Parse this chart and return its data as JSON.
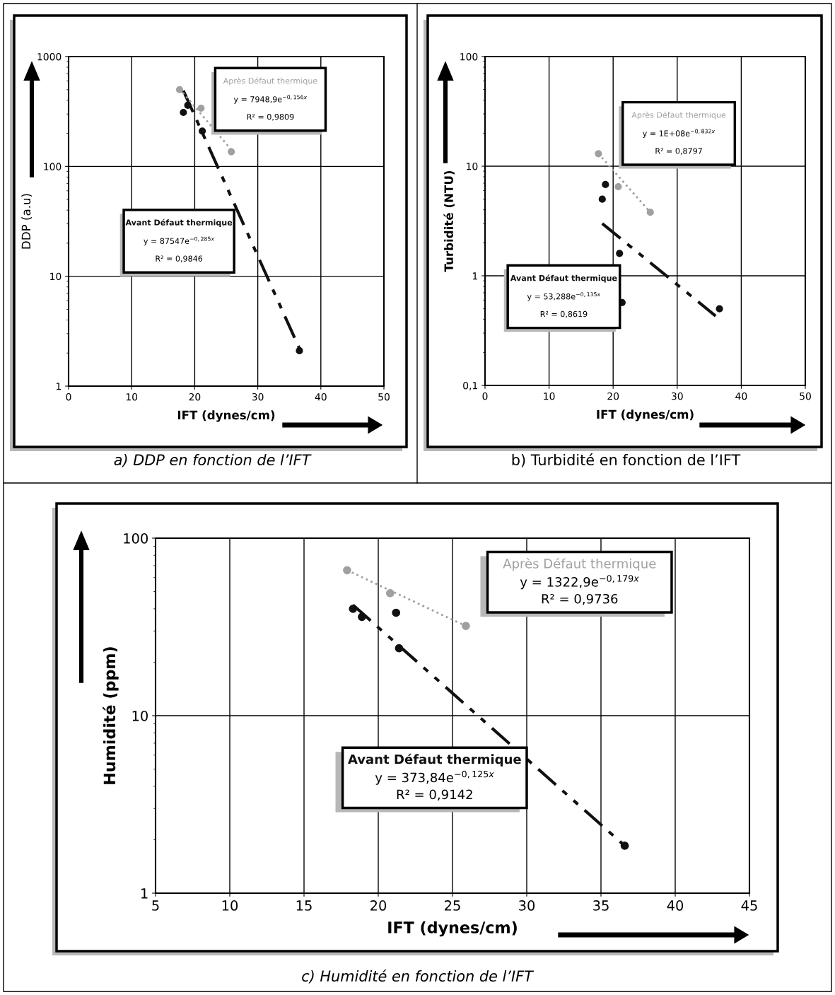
{
  "chart_data": [
    {
      "type": "scatter",
      "xlabel": "IFT (dynes/cm)",
      "ylabel": "DDP (a.u)",
      "log": "y",
      "grid": true,
      "marker": "circle",
      "xlim": [
        0,
        50
      ],
      "xticks": [
        0,
        10,
        20,
        30,
        40,
        50
      ],
      "ylim": [
        1,
        1000
      ],
      "yticks": [
        1,
        10,
        100,
        1000
      ],
      "series": [
        {
          "color": "#111111",
          "x": [
            18.2,
            18.9,
            21.2,
            36.6
          ],
          "values": [
            310,
            360,
            210,
            2.1
          ]
        },
        {
          "color": "#a0a0a0",
          "x": [
            17.6,
            21.0,
            25.8
          ],
          "values": [
            500,
            339,
            136
          ]
        },
        {
          "type": "line",
          "marker": "none",
          "color": "#111111",
          "line_style": "dashed",
          "x": [
            18.2,
            36.6
          ],
          "values": [
            490,
            2.2
          ]
        },
        {
          "type": "line",
          "marker": "none",
          "color": "#a0a0a0",
          "line_style": "dotted",
          "x": [
            17.6,
            25.8
          ],
          "values": [
            510,
            142
          ]
        }
      ],
      "annotations": [
        "Avant Défaut thermique\ny = 87547e$^{−0,285x}$\nR² = 0,9846",
        "Après Défaut thermique\ny = 7948,9e$^{−0,156x}$\nR² = 0,9809",
        "a) DDP en fonction de l’IFT"
      ]
    },
    {
      "type": "scatter",
      "xlabel": "IFT (dynes/cm)",
      "ylabel": "Turbidité (NTU)",
      "log": "y",
      "grid": true,
      "marker": "circle",
      "xlim": [
        0,
        50
      ],
      "xticks": [
        0,
        10,
        20,
        30,
        40,
        50
      ],
      "ylim": [
        0.1,
        100
      ],
      "yticks": [
        {
          "value": 0.1,
          "label": "0,1"
        },
        1,
        10,
        100
      ],
      "series": [
        {
          "color": "#111111",
          "x": [
            18.3,
            18.8,
            21.0,
            21.4,
            36.6
          ],
          "values": [
            5.0,
            6.8,
            1.6,
            0.57,
            0.5
          ]
        },
        {
          "color": "#a0a0a0",
          "x": [
            17.7,
            20.8,
            25.8
          ],
          "values": [
            13,
            6.5,
            3.8
          ]
        },
        {
          "type": "line",
          "marker": "none",
          "color": "#111111",
          "line_style": "dashed",
          "x": [
            18.3,
            36.0
          ],
          "values": [
            3.0,
            0.43
          ]
        },
        {
          "type": "line",
          "marker": "none",
          "color": "#a0a0a0",
          "line_style": "dotted",
          "x": [
            17.7,
            25.8
          ],
          "values": [
            13,
            3.8
          ]
        }
      ],
      "annotations": [
        "Avant Défaut thermique\ny = 53,288e$^{−0,135x}$\nR² = 0,8619",
        "Après Défaut thermique\ny = 1E+08e$^{−0,832x}$\nR² = 0,8797",
        "b) Turbidité en fonction de l’IFT"
      ]
    },
    {
      "type": "scatter",
      "xlabel": "IFT (dynes/cm)",
      "ylabel": "Humidité (ppm)",
      "log": "y",
      "grid": true,
      "marker": "circle",
      "xlim": [
        5,
        45
      ],
      "xticks": [
        5,
        10,
        15,
        20,
        25,
        30,
        35,
        40,
        45
      ],
      "ylim": [
        1,
        100
      ],
      "yticks": [
        1,
        10,
        100
      ],
      "series": [
        {
          "color": "#111111",
          "x": [
            18.3,
            18.9,
            21.2,
            21.4,
            36.6
          ],
          "values": [
            40,
            36,
            38,
            24,
            1.85
          ]
        },
        {
          "color": "#a0a0a0",
          "x": [
            17.9,
            20.8,
            25.9
          ],
          "values": [
            66,
            49,
            32
          ]
        },
        {
          "type": "line",
          "marker": "none",
          "color": "#111111",
          "line_style": "dashed",
          "x": [
            18.3,
            36.6
          ],
          "values": [
            42,
            1.85
          ]
        },
        {
          "type": "line",
          "marker": "none",
          "color": "#a0a0a0",
          "line_style": "dotted",
          "x": [
            17.9,
            25.9
          ],
          "values": [
            66,
            32
          ]
        }
      ],
      "annotations": [
        "Avant Défaut thermique\ny = 373,84e$^{−0,125x}$\nR² = 0,9142",
        "Après Défaut thermique\ny = 1322,9e$^{−0,179x}$\nR² = 0,9736",
        "c) Humidité en fonction de l’IFT"
      ]
    }
  ]
}
